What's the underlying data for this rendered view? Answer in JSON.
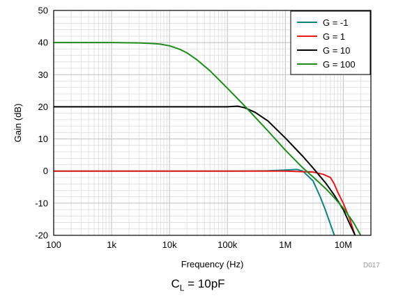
{
  "chart_data": {
    "type": "line",
    "xlabel": "Frequency (Hz)",
    "ylabel": "Gain (dB)",
    "x_scale": "log",
    "xlim": [
      100,
      30000000
    ],
    "ylim": [
      -20,
      50
    ],
    "x_ticks": [
      100,
      1000,
      10000,
      100000,
      1000000,
      10000000
    ],
    "x_tick_labels": [
      "100",
      "1k",
      "10k",
      "100k",
      "1M",
      "10M"
    ],
    "y_ticks": [
      -20,
      -10,
      0,
      10,
      20,
      30,
      40,
      50
    ],
    "y_tick_labels": [
      "-20",
      "-10",
      "0",
      "10",
      "20",
      "30",
      "40",
      "50"
    ],
    "grid": true,
    "legend_position": "top-right",
    "series": [
      {
        "name": "G = -1",
        "color": "#0f7f80",
        "x": [
          100,
          1000,
          10000,
          100000,
          500000,
          1000000,
          1600000,
          2000000,
          3000000,
          4000000,
          5000000,
          6000000,
          7000000
        ],
        "y": [
          0,
          0,
          0,
          0,
          0.1,
          0.3,
          0.5,
          0,
          -3,
          -8,
          -12.5,
          -16.5,
          -20
        ]
      },
      {
        "name": "G = 1",
        "color": "#e8191b",
        "x": [
          100,
          1000,
          10000,
          100000,
          1000000,
          3000000,
          4500000,
          6000000,
          7000000,
          8000000,
          10000000,
          13000000,
          16000000
        ],
        "y": [
          0,
          0,
          0,
          0,
          0,
          -0.3,
          -1,
          -2,
          -4,
          -6.5,
          -10,
          -15,
          -20
        ]
      },
      {
        "name": "G = 10",
        "color": "#000000",
        "x": [
          100,
          1000,
          10000,
          100000,
          150000,
          200000,
          300000,
          500000,
          1000000,
          2000000,
          3000000,
          5000000,
          7000000,
          10000000,
          13000000,
          16000000
        ],
        "y": [
          20,
          20,
          20,
          20,
          20.2,
          19.7,
          18.3,
          15.6,
          10.3,
          4.6,
          1,
          -3.8,
          -7.5,
          -12,
          -16.5,
          -20
        ]
      },
      {
        "name": "G = 100",
        "color": "#1e8a1e",
        "x": [
          100,
          1000,
          3000,
          5000,
          7000,
          10000,
          15000,
          20000,
          30000,
          50000,
          100000,
          200000,
          500000,
          1000000,
          2000000,
          3000000,
          5000000,
          7000000,
          10000000,
          15000000,
          20000000
        ],
        "y": [
          40,
          40,
          39.9,
          39.7,
          39.5,
          39,
          37.9,
          36.8,
          34.6,
          31.2,
          25.8,
          20.2,
          12.5,
          6.5,
          1,
          -1.8,
          -5.5,
          -8.3,
          -11.5,
          -16,
          -20
        ]
      }
    ],
    "annotations": [
      "D017"
    ]
  },
  "caption": {
    "main": "C",
    "sub": "L",
    "rest": " = 10pF"
  }
}
